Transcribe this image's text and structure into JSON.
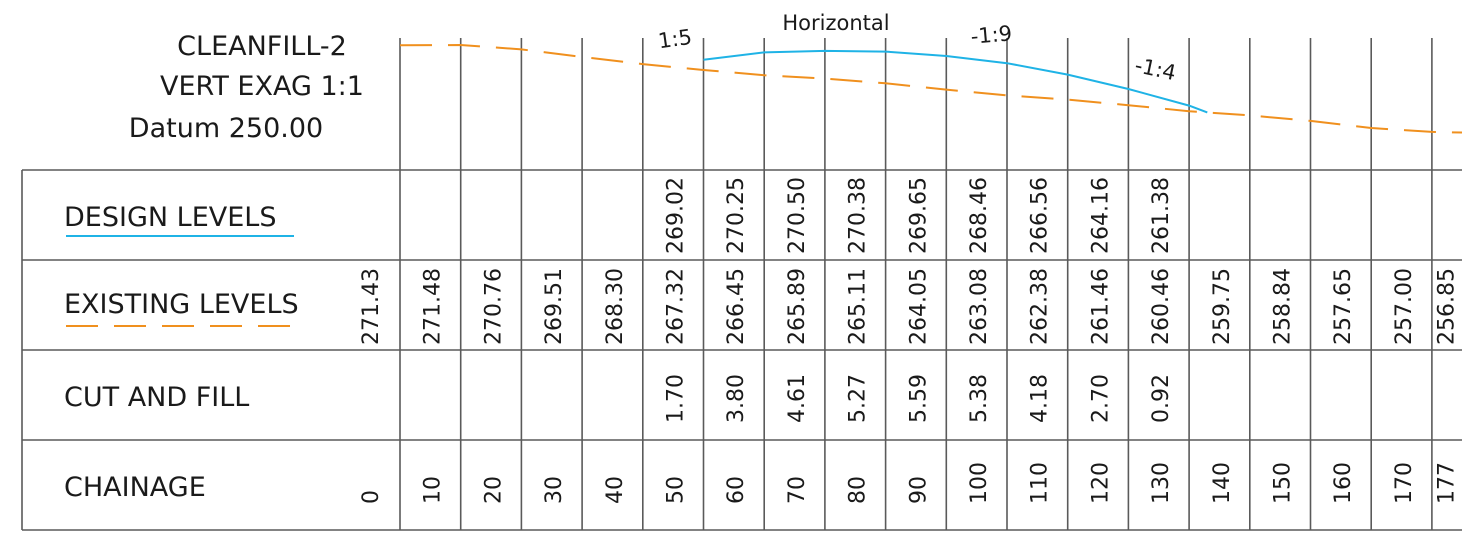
{
  "title": {
    "name": "CLEANFILL-2",
    "exaggeration": "VERT EXAG  1:1",
    "datum": "Datum 250.00"
  },
  "row_labels": {
    "design": "DESIGN LEVELS",
    "existing": "EXISTING LEVELS",
    "cutfill": "CUT AND FILL",
    "chainage": "CHAINAGE"
  },
  "annotations": [
    "1:5",
    "Horizontal",
    "-1:9",
    "-1:4"
  ],
  "colors": {
    "design_line": "#1fb3e6",
    "existing_line": "#f0901e",
    "grid": "#5a5a5a",
    "text": "#1a1a1a"
  },
  "chart_data": {
    "type": "line",
    "x": [
      0,
      10,
      20,
      30,
      40,
      50,
      60,
      70,
      80,
      90,
      100,
      110,
      120,
      130,
      140,
      150,
      160,
      170,
      177
    ],
    "chainage_labels": [
      "0",
      "10",
      "20",
      "30",
      "40",
      "50",
      "60",
      "70",
      "80",
      "90",
      "100",
      "110",
      "120",
      "130",
      "140",
      "150",
      "160",
      "170",
      "177"
    ],
    "existing_levels": [
      "271.43",
      "271.48",
      "270.76",
      "269.51",
      "268.30",
      "267.32",
      "266.45",
      "265.89",
      "265.11",
      "264.05",
      "263.08",
      "262.38",
      "261.46",
      "260.46",
      "259.75",
      "258.84",
      "257.65",
      "257.00",
      "256.85"
    ],
    "design_levels": [
      "",
      "",
      "",
      "",
      "",
      "269.02",
      "270.25",
      "270.50",
      "270.38",
      "269.65",
      "268.46",
      "266.56",
      "264.16",
      "261.38",
      "",
      "",
      "",
      "",
      ""
    ],
    "cut_and_fill": [
      "",
      "",
      "",
      "",
      "",
      "1.70",
      "3.80",
      "4.61",
      "5.27",
      "5.59",
      "5.38",
      "4.18",
      "2.70",
      "0.92",
      "",
      "",
      "",
      "",
      ""
    ],
    "series": [
      {
        "name": "EXISTING LEVELS",
        "x": [
          0,
          10,
          20,
          30,
          40,
          50,
          60,
          70,
          80,
          90,
          100,
          110,
          120,
          130,
          140,
          150,
          160,
          170,
          177
        ],
        "values": [
          271.43,
          271.48,
          270.76,
          269.51,
          268.3,
          267.32,
          266.45,
          265.89,
          265.11,
          264.05,
          263.08,
          262.38,
          261.46,
          260.46,
          259.75,
          258.84,
          257.65,
          257.0,
          256.85
        ]
      },
      {
        "name": "DESIGN LEVELS",
        "x": [
          50,
          60,
          70,
          80,
          90,
          100,
          110,
          120,
          130,
          133
        ],
        "values": [
          269.02,
          270.25,
          270.5,
          270.38,
          269.65,
          268.46,
          266.56,
          264.16,
          261.38,
          260.25
        ]
      }
    ],
    "grid": true
  }
}
